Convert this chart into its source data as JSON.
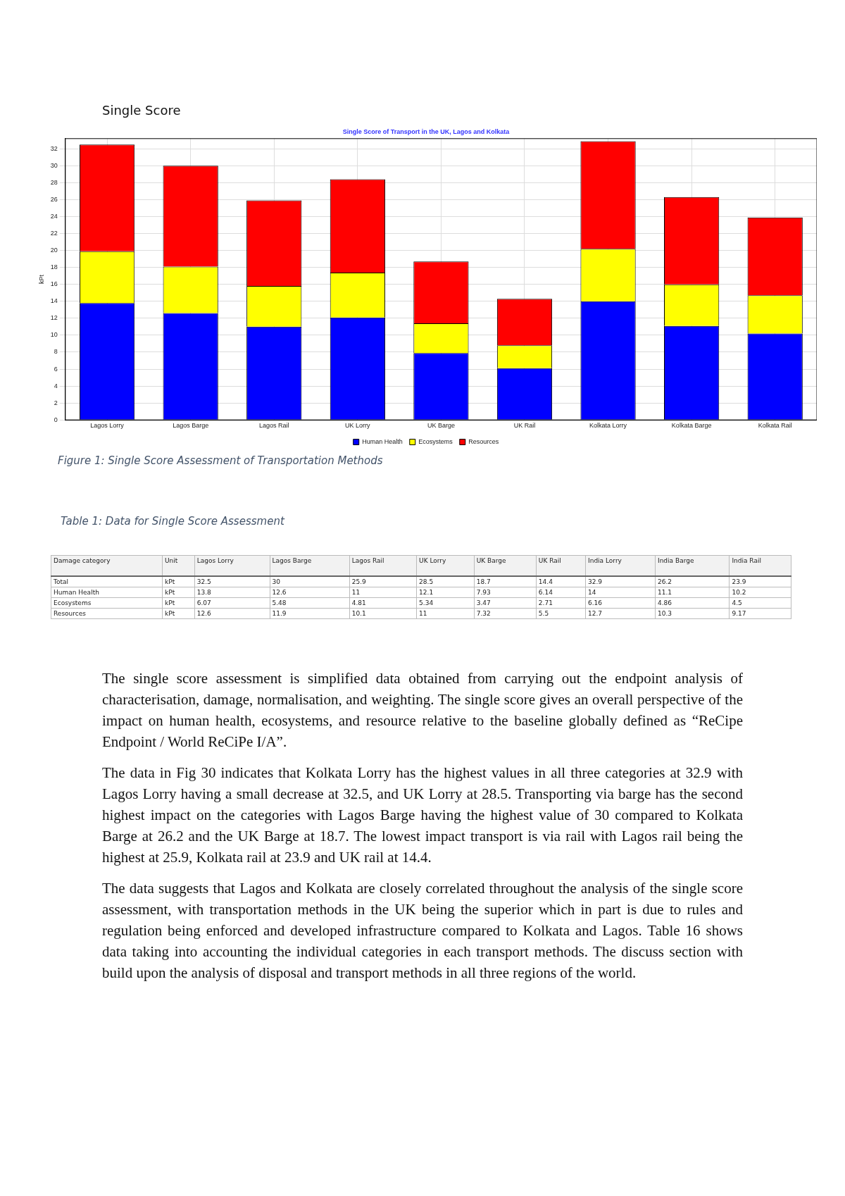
{
  "chart_data": [
    {
      "type": "bar",
      "title": "Single Score of Transport in the UK, Lagos and Kolkata",
      "ylabel": "kPt",
      "categories": [
        "Lagos Lorry",
        "Lagos Barge",
        "Lagos Rail",
        "UK Lorry",
        "UK Barge",
        "UK Rail",
        "Kolkata Lorry",
        "Kolkata Barge",
        "Kolkata Rail"
      ],
      "stacked": true,
      "series": [
        {
          "name": "Human Health",
          "color": "#0000ff",
          "values": [
            13.8,
            12.6,
            11,
            12.1,
            7.9,
            6.1,
            14,
            11.1,
            10.2
          ]
        },
        {
          "name": "Ecosystems",
          "color": "#ffff00",
          "values": [
            6.1,
            5.5,
            4.8,
            5.3,
            3.5,
            2.7,
            6.2,
            4.9,
            4.5
          ]
        },
        {
          "name": "Resources",
          "color": "#ff0000",
          "values": [
            12.6,
            11.9,
            10.1,
            11,
            7.3,
            5.5,
            12.7,
            10.3,
            9.2
          ]
        }
      ],
      "ylim": [
        0,
        33.2
      ],
      "yticks": [
        0,
        2,
        4,
        6,
        8,
        10,
        12,
        14,
        16,
        18,
        20,
        22,
        24,
        26,
        28,
        30,
        32
      ],
      "grid": true,
      "legend": "bottom",
      "annotations": [
        "Single Score",
        "Figure 1: Single Score Assessment of Transportation Methods"
      ]
    },
    {
      "type": "other",
      "title": "Table 1: Data for Single Score Assessment",
      "annotations": [
        "Damage category",
        "Unit",
        "Lagos Lorry",
        "Lagos Barge",
        "Lagos Rail",
        "UK Lorry",
        "UK Barge",
        "UK Rail",
        "India Lorry",
        "India Barge",
        "India Rail",
        "Total",
        "kPt",
        "32.5",
        "30",
        "25.9",
        "28.5",
        "18.7",
        "14.4",
        "32.9",
        "26.2",
        "23.9",
        "Human Health",
        "kPt",
        "13.8",
        "12.6",
        "11",
        "12.1",
        "7.93",
        "6.14",
        "14",
        "11.1",
        "10.2",
        "Ecosystems",
        "kPt",
        "6.07",
        "5.48",
        "4.81",
        "5.34",
        "3.47",
        "2.71",
        "6.16",
        "4.86",
        "4.5",
        "Resources",
        "kPt",
        "12.6",
        "11.9",
        "10.1",
        "11",
        "7.32",
        "5.5",
        "12.7",
        "10.3",
        "9.17",
        "The single score assessment is simplified data obtained from carrying out the endpoint analysis of characterisation, damage, normalisation, and weighting. The single score gives an overall perspective of the impact on human health, ecosystems, and resource relative to the baseline globally defined as “ReCipe Endpoint / World ReCiPe I/A”.",
        "The data in Fig 30 indicates that Kolkata Lorry has the highest values in all three categories at 32.9 with Lagos Lorry having a small decrease at 32.5, and UK Lorry at 28.5. Transporting via barge has the second highest impact on the categories with Lagos Barge having the highest value of 30 compared to Kolkata Barge at 26.2 and the UK Barge at 18.7. The lowest impact transport is via rail with Lagos rail being the highest at 25.9, Kolkata rail at 23.9 and UK rail at 14.4.",
        "The data suggests that Lagos and Kolkata are closely correlated throughout the analysis of the single score assessment, with transportation methods in the UK being the superior which in part is due to rules and regulation being enforced and developed infrastructure compared to Kolkata  and Lagos. Table 16 shows data taking into accounting the individual categories in each transport methods. The discuss section with build upon the analysis of disposal and transport methods in all three regions of the world."
      ]
    }
  ]
}
